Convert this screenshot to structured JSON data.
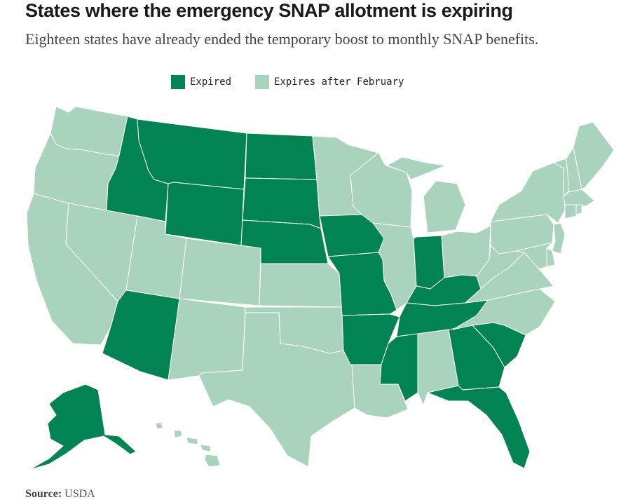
{
  "title": "States where the emergency SNAP allotment is expiring",
  "subtitle": "Eighteen states have already ended the temporary boost to monthly SNAP benefits.",
  "legend": {
    "expired": {
      "label": "Expired",
      "color": "#018352"
    },
    "expires_later": {
      "label": "Expires after February",
      "color": "#a9d3bd"
    }
  },
  "border_color": "#ffffff",
  "source": {
    "label": "Source:",
    "value": "USDA"
  },
  "states": {
    "expired": [
      "ID",
      "MT",
      "WY",
      "ND",
      "SD",
      "NE",
      "IA",
      "MO",
      "AR",
      "AZ",
      "IN",
      "KY",
      "TN",
      "MS",
      "GA",
      "SC",
      "FL",
      "AK"
    ],
    "expires_after_february": [
      "WA",
      "OR",
      "CA",
      "NV",
      "UT",
      "CO",
      "NM",
      "TX",
      "OK",
      "KS",
      "MN",
      "WI",
      "IL",
      "MI",
      "OH",
      "LA",
      "AL",
      "NC",
      "VA",
      "WV",
      "PA",
      "NY",
      "VT",
      "NH",
      "ME",
      "MA",
      "RI",
      "CT",
      "NJ",
      "DE",
      "MD",
      "HI"
    ]
  }
}
